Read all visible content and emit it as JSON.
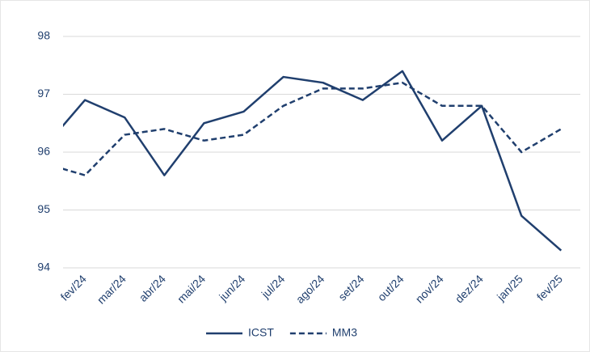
{
  "chart_data": {
    "type": "line",
    "categories": [
      null,
      "fev/24",
      "mar/24",
      "abr/24",
      "mai/24",
      "jun/24",
      "jul/24",
      "ago/24",
      "set/24",
      "out/24",
      "nov/24",
      "dez/24",
      "jan/25",
      "fev/25"
    ],
    "series": [
      {
        "name": "ICST",
        "color": "#203f6e",
        "dash": false,
        "values": [
          96.1,
          96.9,
          96.6,
          95.6,
          96.5,
          96.7,
          97.3,
          97.2,
          96.9,
          97.4,
          96.2,
          96.8,
          94.9,
          94.3
        ]
      },
      {
        "name": "MM3",
        "color": "#203f6e",
        "dash": true,
        "values": [
          95.8,
          95.6,
          96.3,
          96.4,
          96.2,
          96.3,
          96.8,
          97.1,
          97.1,
          97.2,
          96.8,
          96.8,
          96.0,
          96.4
        ]
      }
    ],
    "ylim": [
      94,
      98
    ],
    "yticks": [
      94,
      95,
      96,
      97,
      98
    ],
    "grid": true,
    "legend": "bottom"
  }
}
